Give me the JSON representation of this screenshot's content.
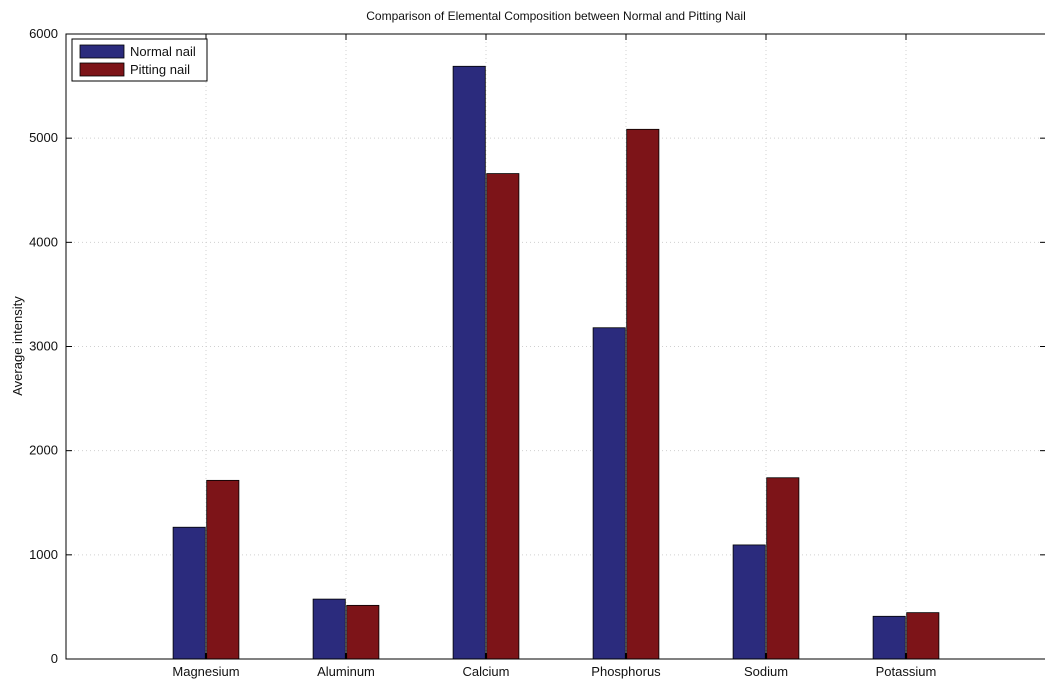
{
  "chart_data": {
    "type": "bar",
    "title": "Comparison of Elemental Composition between Normal and Pitting Nail",
    "xlabel": "",
    "ylabel": "Average intensity",
    "categories": [
      "Magnesium",
      "Aluminum",
      "Calcium",
      "Phosphorus",
      "Sodium",
      "Potassium"
    ],
    "series": [
      {
        "name": "Normal nail",
        "color": "#2b2b7d",
        "values": [
          1265,
          575,
          5690,
          3180,
          1095,
          410
        ]
      },
      {
        "name": "Pitting nail",
        "color": "#7d1418",
        "values": [
          1715,
          515,
          4660,
          5085,
          1740,
          445
        ]
      }
    ],
    "ylim": [
      0,
      6000
    ],
    "yticks": [
      0,
      1000,
      2000,
      3000,
      4000,
      5000,
      6000
    ],
    "grid": true,
    "legend_position": "top-left"
  }
}
